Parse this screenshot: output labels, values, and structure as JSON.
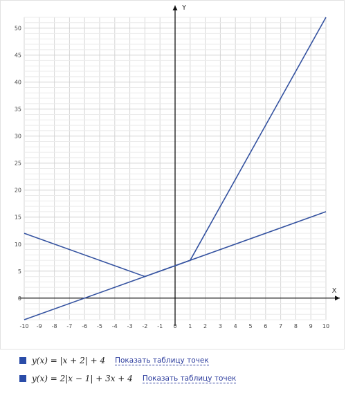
{
  "chart_data": {
    "type": "line",
    "xlabel": "X",
    "ylabel": "Y",
    "xlim": [
      -10,
      10
    ],
    "ylim": [
      -4,
      52
    ],
    "x_ticks": [
      -10,
      -9,
      -8,
      -7,
      -6,
      -5,
      -4,
      -3,
      -2,
      -1,
      0,
      1,
      2,
      3,
      4,
      5,
      6,
      7,
      8,
      9,
      10
    ],
    "y_ticks": [
      0,
      5,
      10,
      15,
      20,
      25,
      30,
      35,
      40,
      45,
      50
    ],
    "grid": true,
    "series": [
      {
        "name": "y(x) = |x + 2| + 4",
        "color": "#3452a0",
        "x": [
          -10,
          -2,
          10
        ],
        "y": [
          12,
          4,
          16
        ]
      },
      {
        "name": "y(x) = 2|x − 1| + 3x + 4",
        "color": "#3452a0",
        "x": [
          -10,
          1,
          10
        ],
        "y": [
          -4,
          7,
          52
        ]
      }
    ]
  },
  "legend": [
    {
      "formula": "y(x) = |x + 2| + 4",
      "link": "Показать таблицу точек",
      "color": "#2a4ca8"
    },
    {
      "formula": "y(x) = 2|x − 1| + 3x + 4",
      "link": "Показать таблицу точек",
      "color": "#2a4ca8"
    }
  ]
}
